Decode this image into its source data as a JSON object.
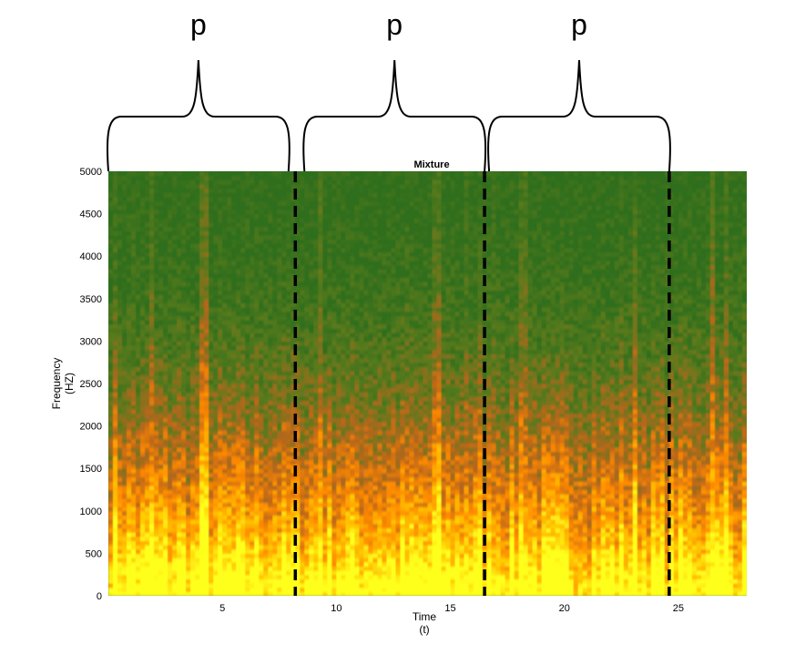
{
  "chart_data": {
    "type": "heatmap",
    "title": "Mixture",
    "xlabel": "Time",
    "xlabel_unit": "(t)",
    "ylabel": "Frequency",
    "ylabel_unit": "(HZ)",
    "xlim": [
      0,
      28
    ],
    "ylim": [
      0,
      5000
    ],
    "x_ticks": [
      5,
      10,
      15,
      20,
      25
    ],
    "y_ticks": [
      0,
      500,
      1000,
      1500,
      2000,
      2500,
      3000,
      3500,
      4000,
      4500,
      5000
    ],
    "colormap": [
      "#2f6e1e",
      "#5a7a1c",
      "#b8661a",
      "#ff8a00",
      "#ffc400",
      "#ffff1e"
    ],
    "segment_boundaries": [
      8.2,
      16.5,
      24.6
    ],
    "segments": [
      {
        "label": "p",
        "start": 0,
        "end": 7.9
      },
      {
        "label": "p",
        "start": 8.6,
        "end": 16.5
      },
      {
        "label": "p",
        "start": 16.7,
        "end": 24.6
      }
    ],
    "grid": false
  }
}
